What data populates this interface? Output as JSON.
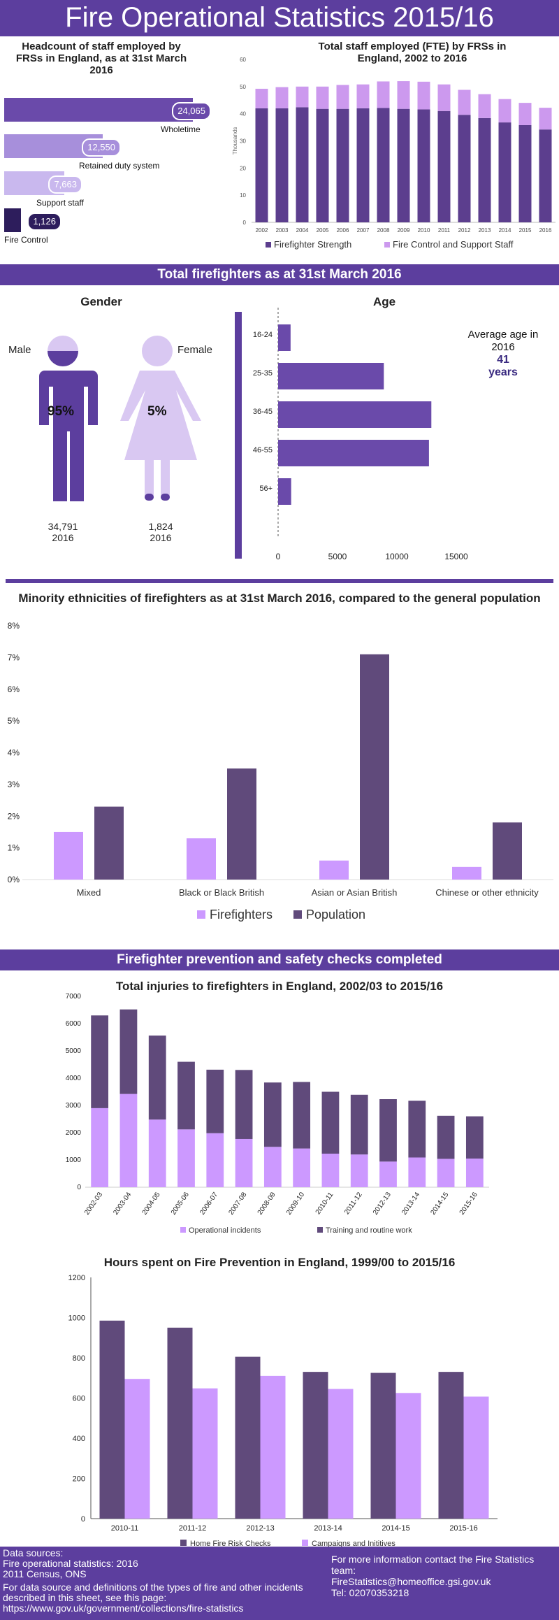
{
  "title": "Fire Operational Statistics 2015/16",
  "headcount": {
    "title": "Headcount of staff employed by FRSs in England, as at 31st March 2016",
    "items": [
      {
        "label": "Wholetime",
        "value": 24065,
        "display": "24,065",
        "color": "#6a4aaa"
      },
      {
        "label": "Retained duty system",
        "value": 12550,
        "display": "12,550",
        "color": "#a78fdb"
      },
      {
        "label": "Support staff",
        "value": 7663,
        "display": "7,663",
        "color": "#c9b8ee"
      },
      {
        "label": "Fire Control",
        "value": 1126,
        "display": "1,126",
        "color": "#2d1d5c"
      }
    ]
  },
  "fte_chart": {
    "title": "Total staff employed (FTE) by FRSs in England, 2002 to 2016",
    "ylabel": "Thousands",
    "ylim": [
      0,
      60
    ],
    "ticks": [
      0,
      10,
      20,
      30,
      40,
      50,
      60
    ],
    "categories": [
      "2002",
      "2003",
      "2004",
      "2005",
      "2006",
      "2007",
      "2008",
      "2009",
      "2010",
      "2011",
      "2012",
      "2013",
      "2014",
      "2015",
      "2016"
    ],
    "series": [
      {
        "name": "Firefighter Strength",
        "color": "#5c3e8e",
        "values": [
          42.0,
          42.0,
          42.4,
          41.8,
          41.8,
          42.0,
          42.1,
          41.8,
          41.6,
          41.0,
          39.6,
          38.4,
          36.8,
          35.8,
          34.2
        ]
      },
      {
        "name": "Fire Control and Support Staff",
        "color": "#cc99ee",
        "values": [
          7.2,
          7.8,
          7.6,
          8.2,
          8.8,
          8.8,
          9.8,
          10.2,
          10.2,
          9.8,
          9.2,
          8.8,
          8.6,
          8.2,
          8.0
        ]
      }
    ]
  },
  "firefighters_band": "Total firefighters as at 31st March 2016",
  "gender": {
    "title": "Gender",
    "male": {
      "label": "Male",
      "percent": "95%",
      "count": "34,791",
      "year": "2016"
    },
    "female": {
      "label": "Female",
      "percent": "5%",
      "count": "1,824",
      "year": "2016"
    }
  },
  "age_chart": {
    "title": "Age",
    "categories": [
      "16-24",
      "25-35",
      "36-45",
      "46-55",
      "56+"
    ],
    "values": [
      1050,
      8900,
      12900,
      12700,
      1100
    ],
    "xlim": [
      0,
      15000
    ],
    "ticks": [
      "0",
      "5000",
      "10000",
      "15000"
    ],
    "tick_values": [
      0,
      5000,
      10000,
      15000
    ],
    "color": "#6a4aaa",
    "average_text": "Average age in 2016",
    "average_value": "41",
    "average_unit": "years"
  },
  "ethnicity_chart": {
    "title": "Minority ethnicities of firefighters as at 31st March 2016, compared to the general population",
    "categories": [
      "Mixed",
      "Black or Black British",
      "Asian or Asian British",
      "Chinese or other ethnicity"
    ],
    "ylim": [
      0,
      8
    ],
    "ticks": [
      "0%",
      "1%",
      "2%",
      "3%",
      "4%",
      "5%",
      "6%",
      "7%",
      "8%"
    ],
    "series": [
      {
        "name": "Firefighters",
        "color": "#cc99ff",
        "values": [
          1.5,
          1.3,
          0.6,
          0.4
        ]
      },
      {
        "name": "Population",
        "color": "#604a7b",
        "values": [
          2.3,
          3.5,
          7.1,
          1.8
        ]
      }
    ]
  },
  "prevention_band": "Firefighter prevention and safety checks completed",
  "injuries_chart": {
    "title": "Total injuries to firefighters in England, 2002/03 to 2015/16",
    "categories": [
      "2002-03",
      "2003-04",
      "2004-05",
      "2005-06",
      "2006-07",
      "2007-08",
      "2008-09",
      "2009-10",
      "2010-11",
      "2011-12",
      "2012-13",
      "2013-14",
      "2014-15",
      "2015-16"
    ],
    "ylim": [
      0,
      7000
    ],
    "ticks": [
      "0",
      "1000",
      "2000",
      "3000",
      "4000",
      "5000",
      "6000",
      "7000"
    ],
    "series": [
      {
        "name": "Operational incidents",
        "color": "#cc99ff",
        "values": [
          2900,
          3420,
          2480,
          2120,
          1980,
          1770,
          1480,
          1420,
          1230,
          1200,
          940,
          1090,
          1040,
          1050
        ]
      },
      {
        "name": "Training and routine work",
        "color": "#604a7b",
        "values": [
          3400,
          3100,
          3080,
          2480,
          2330,
          2530,
          2360,
          2440,
          2270,
          2190,
          2290,
          2080,
          1580,
          1550
        ]
      }
    ]
  },
  "hours_chart": {
    "title": "Hours spent on Fire Prevention in England, 1999/00 to 2015/16",
    "categories": [
      "2010-11",
      "2011-12",
      "2012-13",
      "2013-14",
      "2014-15",
      "2015-16"
    ],
    "ylim": [
      0,
      1200
    ],
    "ticks": [
      "0",
      "200",
      "400",
      "600",
      "800",
      "1000",
      "1200"
    ],
    "series": [
      {
        "name": "Home Fire Risk Checks",
        "color": "#604a7b",
        "values": [
          985,
          950,
          805,
          730,
          725,
          730
        ]
      },
      {
        "name": "Campaigns and Inititives",
        "color": "#cc99ff",
        "values": [
          695,
          648,
          710,
          645,
          625,
          607
        ]
      }
    ]
  },
  "footer": {
    "sources_label": "Data sources:",
    "source1": "Fire operational statistics: 2016",
    "source2": "2011 Census, ONS",
    "definitions": "For data source and definitions of the types of fire and other incidents described in this sheet, see this page:",
    "url": "https://www.gov.uk/government/collections/fire-statistics",
    "contact": "For more information contact the Fire Statistics team:",
    "email": "FireStatistics@homeoffice.gsi.gov.uk",
    "tel": "Tel: 02070353218"
  }
}
